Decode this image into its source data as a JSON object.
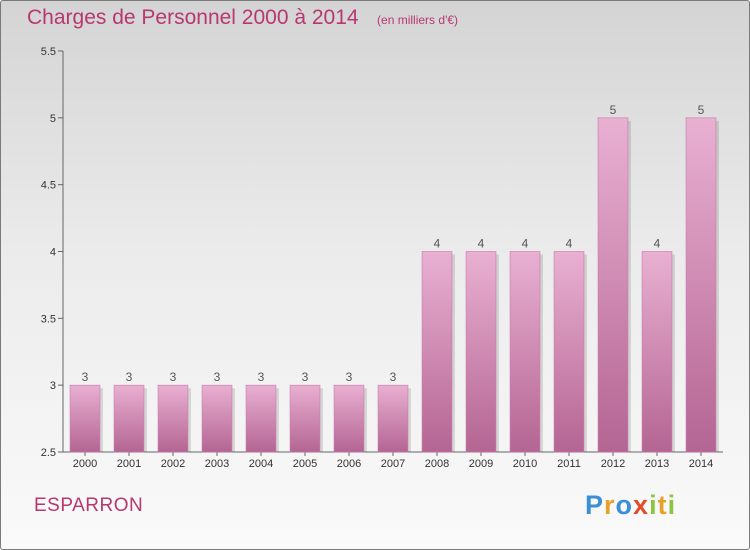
{
  "header": {
    "title": "Charges de Personnel 2000 à 2014",
    "subtitle": "(en milliers d'€)"
  },
  "footer": {
    "commune": "ESPARRON",
    "brand": [
      "P",
      "r",
      "o",
      "x",
      "i",
      "t",
      "i"
    ],
    "brand_colors": [
      "#3a8fd6",
      "#e8a128",
      "#3a8fd6",
      "#e34b2a",
      "#8cc63e",
      "#e8a128",
      "#8cc63e"
    ]
  },
  "chart_data": {
    "type": "bar",
    "title": "Charges de Personnel 2000 à 2014",
    "subtitle": "(en milliers d'€)",
    "categories": [
      "2000",
      "2001",
      "2002",
      "2003",
      "2004",
      "2005",
      "2006",
      "2007",
      "2008",
      "2009",
      "2010",
      "2011",
      "2012",
      "2013",
      "2014"
    ],
    "values": [
      3,
      3,
      3,
      3,
      3,
      3,
      3,
      3,
      4,
      4,
      4,
      4,
      5,
      4,
      5
    ],
    "data_labels": [
      "3",
      "3",
      "3",
      "3",
      "3",
      "3",
      "3",
      "3",
      "4",
      "4",
      "4",
      "4",
      "5",
      "4",
      "5"
    ],
    "yticks": [
      2.5,
      3,
      3.5,
      4,
      4.5,
      5,
      5.5
    ],
    "ytick_labels": [
      "2.5",
      "3",
      "3.5",
      "4",
      "4.5",
      "5",
      "5.5"
    ],
    "ylim": [
      2.5,
      5.5
    ],
    "grid": false,
    "bar_color": "#d98bb8",
    "bar_color_light": "#e9b0d2",
    "bar_color_dark": "#b46593"
  }
}
